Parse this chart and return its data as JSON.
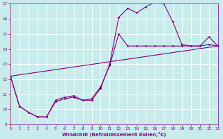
{
  "xlabel": "Windchill (Refroidissement éolien,°C)",
  "bg_color": "#c8ecec",
  "grid_color": "#ffffff",
  "line_color": "#800080",
  "xlim": [
    0,
    23
  ],
  "ylim": [
    9,
    17
  ],
  "xticks": [
    0,
    1,
    2,
    3,
    4,
    5,
    6,
    7,
    8,
    9,
    10,
    11,
    12,
    13,
    14,
    15,
    16,
    17,
    18,
    19,
    20,
    21,
    22,
    23
  ],
  "yticks": [
    9,
    10,
    11,
    12,
    13,
    14,
    15,
    16,
    17
  ],
  "series1": [
    [
      0,
      12.2
    ],
    [
      1,
      10.2
    ],
    [
      2,
      9.8
    ],
    [
      3,
      9.5
    ],
    [
      4,
      9.5
    ],
    [
      5,
      10.6
    ],
    [
      6,
      10.8
    ],
    [
      7,
      10.9
    ],
    [
      8,
      10.6
    ],
    [
      9,
      10.6
    ],
    [
      10,
      11.4
    ],
    [
      11,
      13.0
    ],
    [
      12,
      16.1
    ],
    [
      13,
      16.7
    ],
    [
      14,
      16.4
    ],
    [
      15,
      16.8
    ],
    [
      16,
      17.1
    ],
    [
      17,
      17.0
    ],
    [
      18,
      15.8
    ],
    [
      19,
      14.3
    ],
    [
      20,
      14.2
    ],
    [
      21,
      14.2
    ],
    [
      22,
      14.8
    ],
    [
      23,
      14.2
    ]
  ],
  "series2": [
    [
      0,
      12.2
    ],
    [
      1,
      10.2
    ],
    [
      2,
      9.8
    ],
    [
      3,
      9.5
    ],
    [
      4,
      9.5
    ],
    [
      5,
      10.5
    ],
    [
      6,
      10.7
    ],
    [
      7,
      10.8
    ],
    [
      8,
      10.6
    ],
    [
      9,
      10.7
    ],
    [
      10,
      11.5
    ],
    [
      11,
      12.9
    ],
    [
      12,
      15.0
    ],
    [
      13,
      14.2
    ],
    [
      14,
      14.2
    ],
    [
      15,
      14.2
    ],
    [
      16,
      14.2
    ],
    [
      17,
      14.2
    ],
    [
      18,
      14.2
    ],
    [
      19,
      14.2
    ],
    [
      20,
      14.2
    ],
    [
      21,
      14.2
    ],
    [
      22,
      14.3
    ],
    [
      23,
      14.2
    ]
  ],
  "series3": [
    [
      0,
      12.2
    ],
    [
      23,
      14.2
    ]
  ]
}
